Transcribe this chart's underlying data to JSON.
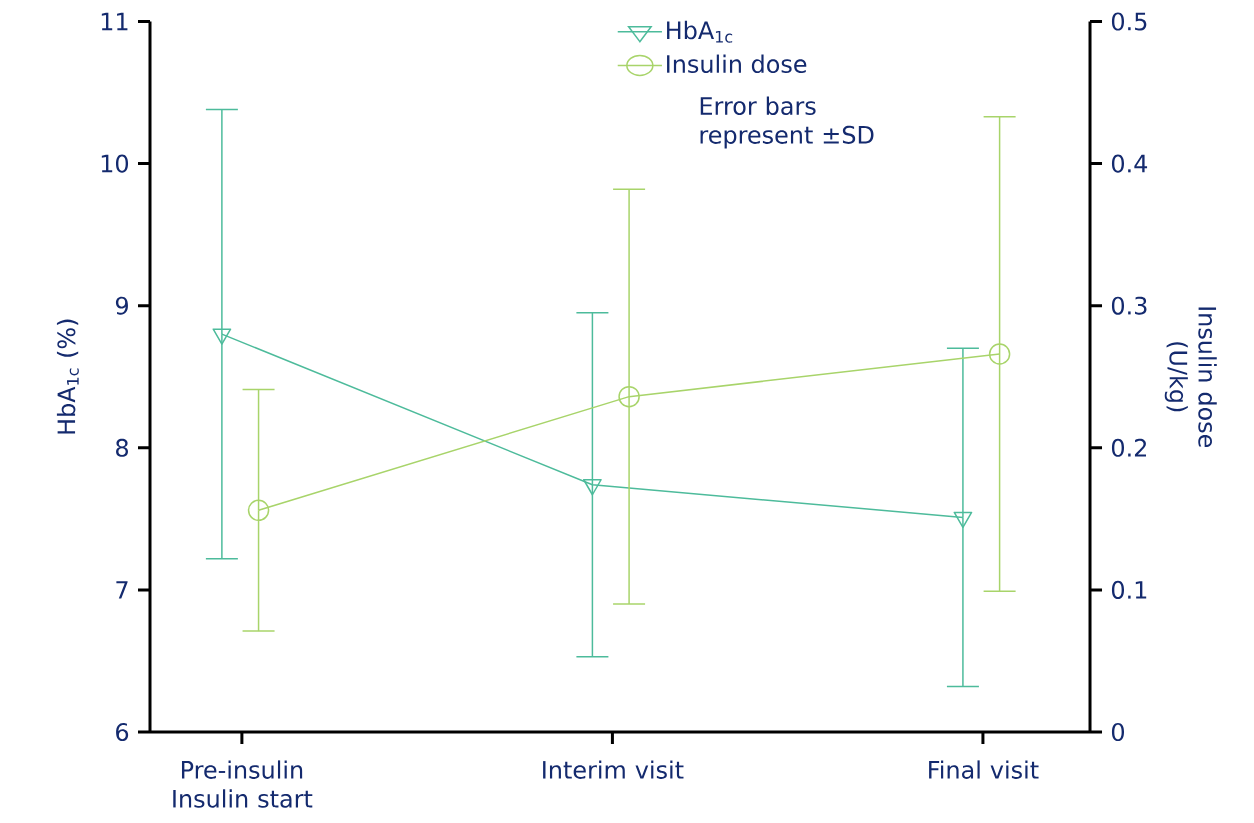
{
  "chart_data": {
    "type": "line",
    "categories": [
      "Pre-insulin Insulin start",
      "Interim visit",
      "Final visit"
    ],
    "ylabel": "HbA$_{1c}$ (%)",
    "y2label": "Insulin dose (U/kg)",
    "ylim": [
      6,
      11
    ],
    "yticks": [
      6,
      7,
      8,
      9,
      10,
      11
    ],
    "y2lim": [
      0,
      0.5
    ],
    "y2ticks": [
      0,
      0.1,
      0.2,
      0.3,
      0.4,
      0.5
    ],
    "series": [
      {
        "name": "HbA$_{1c}$",
        "color": "#4dbb9b",
        "values": [
          8.8,
          7.74,
          7.51
        ],
        "errors": [
          1.58,
          1.21,
          1.19
        ],
        "marker": "triangle"
      },
      {
        "name": "Insulin dose",
        "color": "#a8d46a",
        "values": [
          0.156,
          0.236,
          0.266
        ],
        "errors": [
          0.085,
          0.146,
          0.167
        ],
        "marker": "circle",
        "axis": "y2"
      }
    ],
    "legend": "top",
    "annotations": [
      "Error bars represent ±SD"
    ]
  }
}
